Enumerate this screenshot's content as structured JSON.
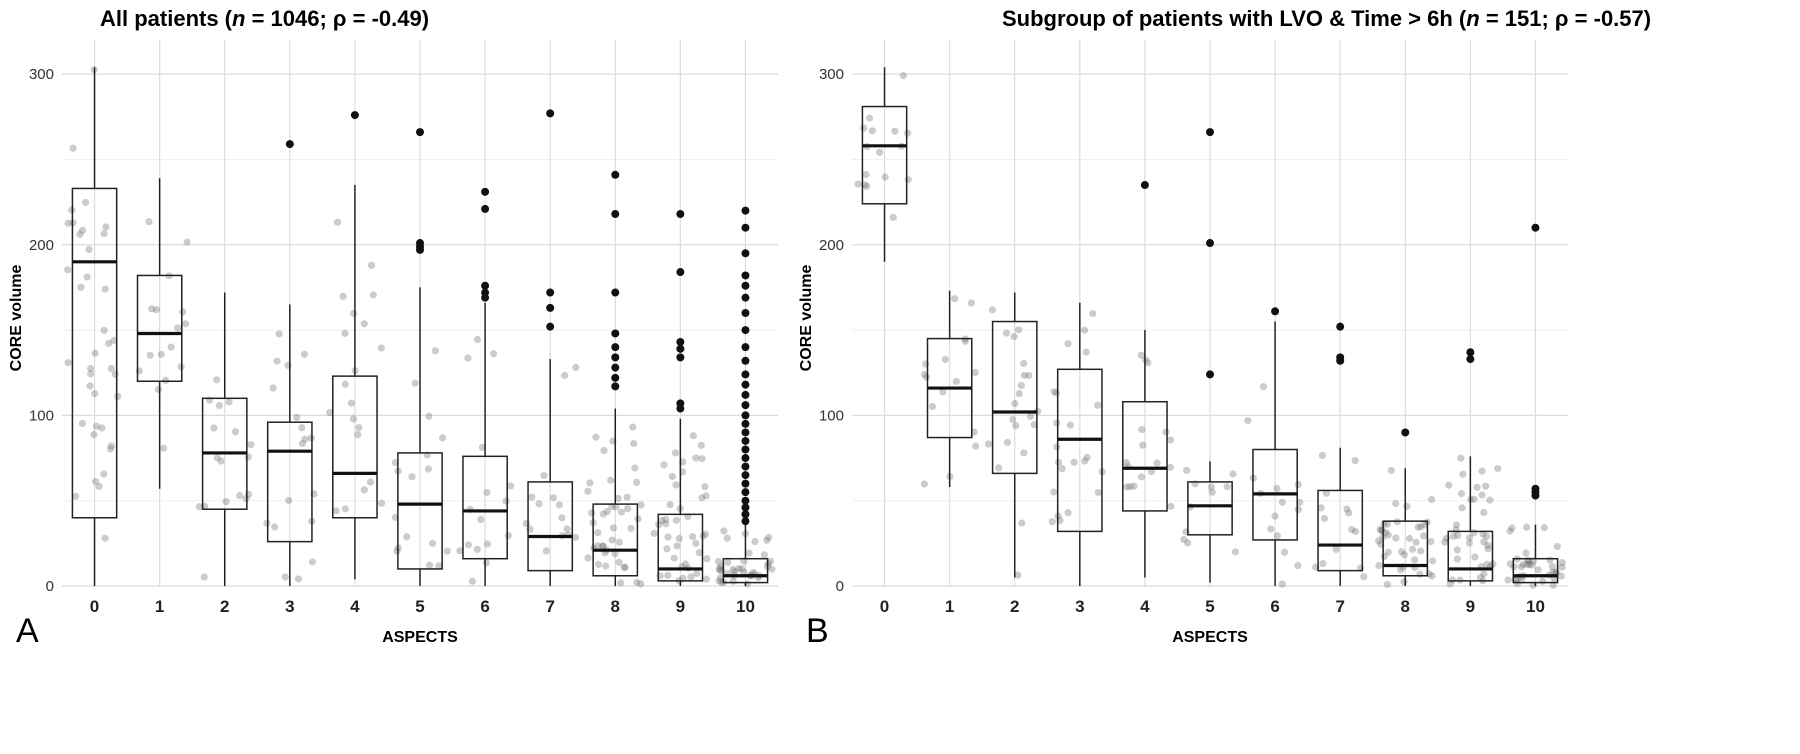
{
  "chart_data": [
    {
      "type": "boxplot",
      "panel_label": "A",
      "title_parts": [
        "All patients (",
        "n",
        " = 1046; ρ = -0.49)"
      ],
      "xlabel": "ASPECTS",
      "ylabel": "CORE volume",
      "categories": [
        "0",
        "1",
        "2",
        "3",
        "4",
        "5",
        "6",
        "7",
        "8",
        "9",
        "10"
      ],
      "ylim": [
        0,
        320
      ],
      "yticks": [
        0,
        100,
        200,
        300
      ],
      "grid": true,
      "boxes": [
        {
          "category": "0",
          "q1": 40,
          "median": 190,
          "q3": 233,
          "whisker_low": 0,
          "whisker_high": 304,
          "outliers": []
        },
        {
          "category": "1",
          "q1": 120,
          "median": 148,
          "q3": 182,
          "whisker_low": 57,
          "whisker_high": 239,
          "outliers": []
        },
        {
          "category": "2",
          "q1": 45,
          "median": 78,
          "q3": 110,
          "whisker_low": 0,
          "whisker_high": 172,
          "outliers": []
        },
        {
          "category": "3",
          "q1": 26,
          "median": 79,
          "q3": 96,
          "whisker_low": 0,
          "whisker_high": 165,
          "outliers": [
            259
          ]
        },
        {
          "category": "4",
          "q1": 40,
          "median": 66,
          "q3": 123,
          "whisker_low": 4,
          "whisker_high": 235,
          "outliers": [
            276
          ]
        },
        {
          "category": "5",
          "q1": 10,
          "median": 48,
          "q3": 78,
          "whisker_low": 0,
          "whisker_high": 175,
          "outliers": [
            266,
            201,
            199,
            197
          ]
        },
        {
          "category": "6",
          "q1": 16,
          "median": 44,
          "q3": 76,
          "whisker_low": 0,
          "whisker_high": 166,
          "outliers": [
            231,
            221,
            176,
            172,
            169
          ]
        },
        {
          "category": "7",
          "q1": 9,
          "median": 29,
          "q3": 61,
          "whisker_low": 0,
          "whisker_high": 133,
          "outliers": [
            277,
            172,
            163,
            152
          ]
        },
        {
          "category": "8",
          "q1": 6,
          "median": 21,
          "q3": 48,
          "whisker_low": 0,
          "whisker_high": 104,
          "outliers": [
            241,
            218,
            172,
            148,
            140,
            134,
            128,
            122,
            117
          ]
        },
        {
          "category": "9",
          "q1": 3,
          "median": 10,
          "q3": 42,
          "whisker_low": 0,
          "whisker_high": 98,
          "outliers": [
            218,
            184,
            143,
            139,
            134,
            107,
            104
          ]
        },
        {
          "category": "10",
          "q1": 2,
          "median": 6,
          "q3": 16,
          "whisker_low": 0,
          "whisker_high": 36,
          "outliers": [
            220,
            210,
            195,
            182,
            176,
            169,
            160,
            150,
            140,
            132,
            124,
            118,
            112,
            106,
            100,
            95,
            90,
            85,
            80,
            75,
            70,
            65,
            60,
            55,
            50,
            46,
            42,
            38
          ]
        }
      ]
    },
    {
      "type": "boxplot",
      "panel_label": "B",
      "title_parts": [
        "Subgroup of patients with LVO & Time > 6h (",
        "n",
        " = 151; ρ = -0.57)"
      ],
      "xlabel": "ASPECTS",
      "ylabel": "CORE volume",
      "categories": [
        "0",
        "1",
        "2",
        "3",
        "4",
        "5",
        "6",
        "7",
        "8",
        "9",
        "10"
      ],
      "ylim": [
        0,
        320
      ],
      "yticks": [
        0,
        100,
        200,
        300
      ],
      "grid": true,
      "boxes": [
        {
          "category": "0",
          "q1": 224,
          "median": 258,
          "q3": 281,
          "whisker_low": 190,
          "whisker_high": 304,
          "outliers": []
        },
        {
          "category": "1",
          "q1": 87,
          "median": 116,
          "q3": 145,
          "whisker_low": 58,
          "whisker_high": 173,
          "outliers": []
        },
        {
          "category": "2",
          "q1": 66,
          "median": 102,
          "q3": 155,
          "whisker_low": 5,
          "whisker_high": 172,
          "outliers": []
        },
        {
          "category": "3",
          "q1": 32,
          "median": 86,
          "q3": 127,
          "whisker_low": 0,
          "whisker_high": 166,
          "outliers": []
        },
        {
          "category": "4",
          "q1": 44,
          "median": 69,
          "q3": 108,
          "whisker_low": 5,
          "whisker_high": 150,
          "outliers": [
            235
          ]
        },
        {
          "category": "5",
          "q1": 30,
          "median": 47,
          "q3": 61,
          "whisker_low": 2,
          "whisker_high": 73,
          "outliers": [
            266,
            201,
            124
          ]
        },
        {
          "category": "6",
          "q1": 27,
          "median": 54,
          "q3": 80,
          "whisker_low": 0,
          "whisker_high": 155,
          "outliers": [
            161
          ]
        },
        {
          "category": "7",
          "q1": 9,
          "median": 24,
          "q3": 56,
          "whisker_low": 0,
          "whisker_high": 81,
          "outliers": [
            152,
            134,
            132
          ]
        },
        {
          "category": "8",
          "q1": 6,
          "median": 12,
          "q3": 38,
          "whisker_low": 0,
          "whisker_high": 69,
          "outliers": [
            90
          ]
        },
        {
          "category": "9",
          "q1": 3,
          "median": 10,
          "q3": 32,
          "whisker_low": 0,
          "whisker_high": 76,
          "outliers": [
            137,
            133
          ]
        },
        {
          "category": "10",
          "q1": 2,
          "median": 6,
          "q3": 16,
          "whisker_low": 0,
          "whisker_high": 36,
          "outliers": [
            210,
            57,
            55,
            53
          ]
        }
      ]
    }
  ]
}
